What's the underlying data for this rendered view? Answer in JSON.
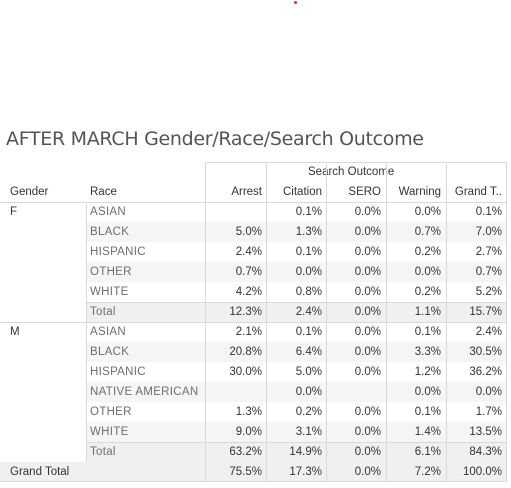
{
  "title": "AFTER MARCH Gender/Race/Search Outcome",
  "header": {
    "group_label": "Search Outcome",
    "gender_label": "Gender",
    "race_label": "Race",
    "columns": [
      "Arrest",
      "Citation",
      "SERO",
      "Warning",
      "Grand T.."
    ]
  },
  "groups": [
    {
      "gender": "F",
      "rows": [
        {
          "race": "ASIAN",
          "values": [
            "",
            "0.1%",
            "0.0%",
            "0.0%",
            "0.1%"
          ]
        },
        {
          "race": "BLACK",
          "values": [
            "5.0%",
            "1.3%",
            "0.0%",
            "0.7%",
            "7.0%"
          ]
        },
        {
          "race": "HISPANIC",
          "values": [
            "2.4%",
            "0.1%",
            "0.0%",
            "0.2%",
            "2.7%"
          ]
        },
        {
          "race": "OTHER",
          "values": [
            "0.7%",
            "0.0%",
            "0.0%",
            "0.0%",
            "0.7%"
          ]
        },
        {
          "race": "WHITE",
          "values": [
            "4.2%",
            "0.8%",
            "0.0%",
            "0.2%",
            "5.2%"
          ]
        }
      ],
      "total": {
        "label": "Total",
        "values": [
          "12.3%",
          "2.4%",
          "0.0%",
          "1.1%",
          "15.7%"
        ]
      }
    },
    {
      "gender": "M",
      "rows": [
        {
          "race": "ASIAN",
          "values": [
            "2.1%",
            "0.1%",
            "0.0%",
            "0.1%",
            "2.4%"
          ]
        },
        {
          "race": "BLACK",
          "values": [
            "20.8%",
            "6.4%",
            "0.0%",
            "3.3%",
            "30.5%"
          ]
        },
        {
          "race": "HISPANIC",
          "values": [
            "30.0%",
            "5.0%",
            "0.0%",
            "1.2%",
            "36.2%"
          ]
        },
        {
          "race": "NATIVE AMERICAN",
          "values": [
            "",
            "0.0%",
            "",
            "0.0%",
            "0.0%"
          ]
        },
        {
          "race": "OTHER",
          "values": [
            "1.3%",
            "0.2%",
            "0.0%",
            "0.1%",
            "1.7%"
          ]
        },
        {
          "race": "WHITE",
          "values": [
            "9.0%",
            "3.1%",
            "0.0%",
            "1.4%",
            "13.5%"
          ]
        }
      ],
      "total": {
        "label": "Total",
        "values": [
          "63.2%",
          "14.9%",
          "0.0%",
          "6.1%",
          "84.3%"
        ]
      }
    }
  ],
  "grand_total": {
    "label": "Grand Total",
    "values": [
      "75.5%",
      "17.3%",
      "0.0%",
      "7.2%",
      "100.0%"
    ]
  },
  "colors": {
    "marker_dot": "#d0343a",
    "gridline": "#d9d9d9",
    "band": "#f5f5f5"
  }
}
